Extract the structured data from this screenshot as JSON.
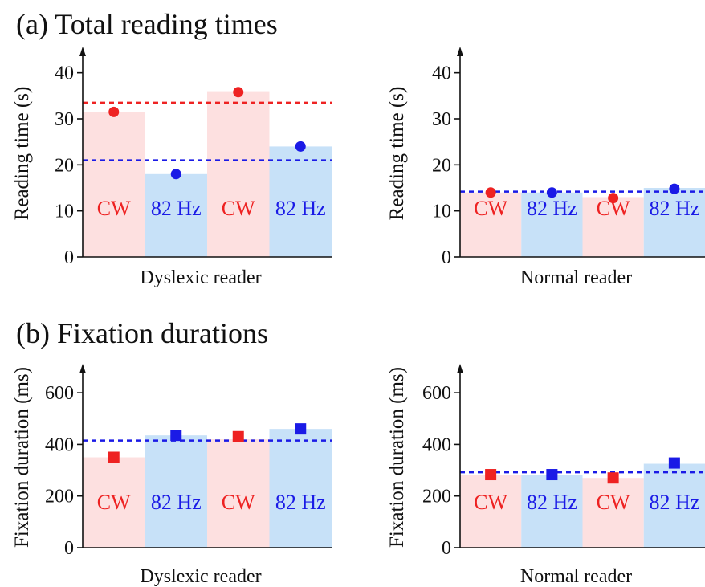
{
  "sections": {
    "a_title": "(a) Total reading times",
    "b_title": "(b) Fixation durations"
  },
  "colors": {
    "cw_bar": "#fde0e0",
    "hz_bar": "#c7e1f8",
    "cw_marker": "#ee2222",
    "hz_marker": "#1a1ae6",
    "cw_text": "#ee2222",
    "hz_text": "#1a1ae6",
    "red_line": "#ee2222",
    "blue_line": "#1a1ae6"
  },
  "chart_data": [
    {
      "type": "bar",
      "xlabel": "Dyslexic reader",
      "ylabel": "Reading time (s)",
      "ylim": [
        0,
        45
      ],
      "yticks": [
        0,
        10,
        20,
        30,
        40
      ],
      "marker": "circle",
      "categories": [
        "CW",
        "82 Hz",
        "CW",
        "82 Hz"
      ],
      "bar_values": [
        31.5,
        18,
        36,
        24
      ],
      "point_values": [
        31.5,
        18,
        35.8,
        24
      ],
      "hlines": [
        {
          "value": 33.5,
          "color": "red"
        },
        {
          "value": 21,
          "color": "blue"
        }
      ]
    },
    {
      "type": "bar",
      "xlabel": "Normal reader",
      "ylabel": "Reading time (s)",
      "ylim": [
        0,
        45
      ],
      "yticks": [
        0,
        10,
        20,
        30,
        40
      ],
      "marker": "circle",
      "categories": [
        "CW",
        "82 Hz",
        "CW",
        "82 Hz"
      ],
      "bar_values": [
        14,
        14,
        13,
        15
      ],
      "point_values": [
        14,
        14,
        12.8,
        14.8
      ],
      "hlines": [
        {
          "value": 14.2,
          "color": "blue"
        }
      ]
    },
    {
      "type": "bar",
      "xlabel": "Dyslexic reader",
      "ylabel": "Fixation duration (ms)",
      "ylim": [
        0,
        700
      ],
      "yticks": [
        0,
        200,
        400,
        600
      ],
      "marker": "square",
      "categories": [
        "CW",
        "82 Hz",
        "CW",
        "82 Hz"
      ],
      "bar_values": [
        350,
        435,
        420,
        460
      ],
      "point_values": [
        350,
        435,
        430,
        460
      ],
      "hlines": [
        {
          "value": 415,
          "color": "blue"
        }
      ]
    },
    {
      "type": "bar",
      "xlabel": "Normal reader",
      "ylabel": "Fixation duration (ms)",
      "ylim": [
        0,
        700
      ],
      "yticks": [
        0,
        200,
        400,
        600
      ],
      "marker": "square",
      "categories": [
        "CW",
        "82 Hz",
        "CW",
        "82 Hz"
      ],
      "bar_values": [
        283,
        283,
        270,
        325
      ],
      "point_values": [
        283,
        283,
        270,
        328
      ],
      "hlines": [
        {
          "value": 292,
          "color": "blue"
        }
      ]
    }
  ]
}
